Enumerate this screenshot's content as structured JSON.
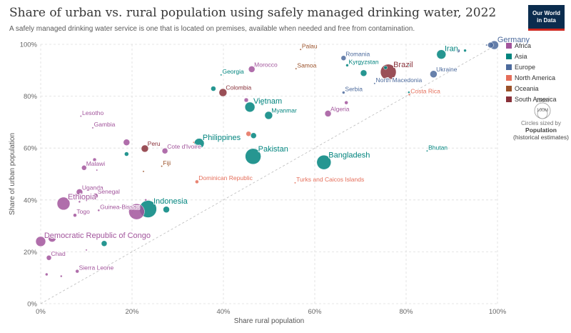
{
  "header": {
    "title": "Share of urban vs. rural population using safely managed drinking water, 2022",
    "subtitle": "A safely managed drinking water service is one that is located on premises, available when needed and free from contamination.",
    "logo_line1": "Our World",
    "logo_line2": "in Data"
  },
  "colors": {
    "Africa": "#a2559c",
    "Asia": "#00847e",
    "Europe": "#4c6a9c",
    "North America": "#e56e5a",
    "Oceania": "#9a5129",
    "South America": "#883039"
  },
  "legend": {
    "items": [
      "Africa",
      "Asia",
      "Europe",
      "North America",
      "Oceania",
      "South America"
    ],
    "size_big": "250M",
    "size_small": "100M",
    "size_note": "Circles sized by",
    "size_title": "Population",
    "size_sub": "(historical estimates)"
  },
  "chart_data": {
    "type": "scatter",
    "xlabel": "Share rural population",
    "ylabel": "Share of urban population",
    "xlim": [
      0,
      100
    ],
    "ylim": [
      0,
      100
    ],
    "x_ticks": [
      "0%",
      "20%",
      "40%",
      "60%",
      "80%",
      "100%"
    ],
    "y_ticks": [
      "0%",
      "20%",
      "40%",
      "60%",
      "80%",
      "100%"
    ],
    "points": [
      {
        "x": 0,
        "y": 24,
        "r": 7,
        "region": "Africa",
        "label": "Democratic Republic of Congo"
      },
      {
        "x": 2.5,
        "y": 25.3,
        "r": 5.5,
        "region": "Africa",
        "label": ""
      },
      {
        "x": 1.8,
        "y": 17.7,
        "r": 3.5,
        "region": "Africa",
        "label": "Chad"
      },
      {
        "x": 1.3,
        "y": 11.3,
        "r": 2,
        "region": "Africa",
        "label": ""
      },
      {
        "x": 4.5,
        "y": 10.6,
        "r": 1.5,
        "region": "Africa",
        "label": ""
      },
      {
        "x": 8,
        "y": 12.5,
        "r": 2.5,
        "region": "Africa",
        "label": "Sierra Leone"
      },
      {
        "x": 10,
        "y": 20.7,
        "r": 1.2,
        "region": "Africa",
        "label": ""
      },
      {
        "x": 5,
        "y": 38.6,
        "r": 9,
        "region": "Africa",
        "label": "Ethiopia"
      },
      {
        "x": 7.5,
        "y": 34.1,
        "r": 2.5,
        "region": "Africa",
        "label": "Togo"
      },
      {
        "x": 8.5,
        "y": 39.3,
        "r": 1.5,
        "region": "Africa",
        "label": ""
      },
      {
        "x": 8.5,
        "y": 43,
        "r": 4.5,
        "region": "Africa",
        "label": "Uganda"
      },
      {
        "x": 12,
        "y": 41.6,
        "r": 3.5,
        "region": "Africa",
        "label": "Senegal"
      },
      {
        "x": 12.7,
        "y": 36,
        "r": 1.5,
        "region": "Africa",
        "label": "Guinea-Bissau"
      },
      {
        "x": 9.5,
        "y": 52.4,
        "r": 3.5,
        "region": "Africa",
        "label": "Malawi"
      },
      {
        "x": 11.8,
        "y": 55.5,
        "r": 2.5,
        "region": "Africa",
        "label": ""
      },
      {
        "x": 12.3,
        "y": 51.5,
        "r": 1.2,
        "region": "Africa",
        "label": ""
      },
      {
        "x": 11.4,
        "y": 67.8,
        "r": 1.2,
        "region": "Africa",
        "label": "Gambia"
      },
      {
        "x": 8.8,
        "y": 72.3,
        "r": 1.2,
        "region": "Africa",
        "label": "Lesotho"
      },
      {
        "x": 21,
        "y": 35.5,
        "r": 11,
        "region": "Africa",
        "label": ""
      },
      {
        "x": 18.8,
        "y": 62.2,
        "r": 4.5,
        "region": "Africa",
        "label": ""
      },
      {
        "x": 27.2,
        "y": 58.9,
        "r": 4,
        "region": "Africa",
        "label": "Cote d'Ivoire"
      },
      {
        "x": 23,
        "y": 40,
        "r": 1.5,
        "region": "Africa",
        "label": ""
      },
      {
        "x": 45,
        "y": 78.5,
        "r": 3,
        "region": "Africa",
        "label": ""
      },
      {
        "x": 46.2,
        "y": 90.4,
        "r": 4.5,
        "region": "Africa",
        "label": "Morocco"
      },
      {
        "x": 62.9,
        "y": 73.3,
        "r": 4.5,
        "region": "Africa",
        "label": "Algeria"
      },
      {
        "x": 66.9,
        "y": 77.5,
        "r": 2.5,
        "region": "Africa",
        "label": ""
      },
      {
        "x": 23.5,
        "y": 36.5,
        "r": 12,
        "region": "Asia",
        "label": "Indonesia"
      },
      {
        "x": 27.5,
        "y": 36.3,
        "r": 4.5,
        "region": "Asia",
        "label": ""
      },
      {
        "x": 13.9,
        "y": 23.2,
        "r": 4,
        "region": "Asia",
        "label": ""
      },
      {
        "x": 18.8,
        "y": 57.7,
        "r": 3,
        "region": "Asia",
        "label": ""
      },
      {
        "x": 34.7,
        "y": 61.8,
        "r": 7,
        "region": "Asia",
        "label": "Philippines"
      },
      {
        "x": 46.5,
        "y": 56.8,
        "r": 11,
        "region": "Asia",
        "label": "Pakistan"
      },
      {
        "x": 46.6,
        "y": 64.8,
        "r": 4,
        "region": "Asia",
        "label": ""
      },
      {
        "x": 45.8,
        "y": 75.8,
        "r": 7,
        "region": "Asia",
        "label": "Vietnam"
      },
      {
        "x": 48.5,
        "y": 77.2,
        "r": 2.5,
        "region": "Asia",
        "label": ""
      },
      {
        "x": 49.9,
        "y": 72.6,
        "r": 5.5,
        "region": "Asia",
        "label": "Myanmar"
      },
      {
        "x": 37.8,
        "y": 82.9,
        "r": 3.5,
        "region": "Asia",
        "label": ""
      },
      {
        "x": 62,
        "y": 54.5,
        "r": 10,
        "region": "Asia",
        "label": "Bangladesh"
      },
      {
        "x": 67.1,
        "y": 91.9,
        "r": 2,
        "region": "Asia",
        "label": "Kyrgyzstan"
      },
      {
        "x": 70.7,
        "y": 88.9,
        "r": 4.5,
        "region": "Asia",
        "label": ""
      },
      {
        "x": 75.5,
        "y": 91,
        "r": 2.5,
        "region": "Asia",
        "label": ""
      },
      {
        "x": 80.6,
        "y": 92.3,
        "r": 2.5,
        "region": "Asia",
        "label": ""
      },
      {
        "x": 80.6,
        "y": 81.5,
        "r": 1.5,
        "region": "Asia",
        "label": ""
      },
      {
        "x": 87.7,
        "y": 96.1,
        "r": 6.5,
        "region": "Asia",
        "label": "Iran"
      },
      {
        "x": 92.9,
        "y": 97.6,
        "r": 2,
        "region": "Asia",
        "label": ""
      },
      {
        "x": 84.6,
        "y": 58.9,
        "r": 1.2,
        "region": "Asia",
        "label": "Bhutan"
      },
      {
        "x": 39.5,
        "y": 88.2,
        "r": 1.2,
        "region": "Asia",
        "label": "Georgia"
      },
      {
        "x": 98.5,
        "y": 99.7,
        "r": 4,
        "region": "Europe",
        "label": ""
      },
      {
        "x": 99.3,
        "y": 99.7,
        "r": 6,
        "region": "Europe",
        "label": "Germany"
      },
      {
        "x": 97.6,
        "y": 99.7,
        "r": 1.2,
        "region": "Europe",
        "label": ""
      },
      {
        "x": 91.4,
        "y": 97.5,
        "r": 2.5,
        "region": "Europe",
        "label": ""
      },
      {
        "x": 86,
        "y": 88.5,
        "r": 5,
        "region": "Europe",
        "label": "Ukraine"
      },
      {
        "x": 66.3,
        "y": 94.7,
        "r": 3.5,
        "region": "Europe",
        "label": "Romania"
      },
      {
        "x": 66.3,
        "y": 81.4,
        "r": 2,
        "region": "Europe",
        "label": "Serbia"
      },
      {
        "x": 73.1,
        "y": 84.9,
        "r": 1.2,
        "region": "Europe",
        "label": "North Macedonia"
      },
      {
        "x": 45.5,
        "y": 65.5,
        "r": 3.5,
        "region": "North America",
        "label": ""
      },
      {
        "x": 33.5,
        "y": 62.2,
        "r": 1.2,
        "region": "North America",
        "label": ""
      },
      {
        "x": 34.2,
        "y": 47,
        "r": 2.5,
        "region": "North America",
        "label": "Dominican Republic"
      },
      {
        "x": 55.7,
        "y": 46.6,
        "r": 1.2,
        "region": "North America",
        "label": "Turks and Caicos Islands"
      },
      {
        "x": 80.7,
        "y": 80.6,
        "r": 1.5,
        "region": "North America",
        "label": "Costa Rica"
      },
      {
        "x": 56.9,
        "y": 98,
        "r": 1.2,
        "region": "Oceania",
        "label": "Palau"
      },
      {
        "x": 55.9,
        "y": 90.6,
        "r": 1.2,
        "region": "Oceania",
        "label": "Samoa"
      },
      {
        "x": 26.5,
        "y": 53,
        "r": 1.2,
        "region": "Oceania",
        "label": "Fiji"
      },
      {
        "x": 22.5,
        "y": 51,
        "r": 1.2,
        "region": "Oceania",
        "label": ""
      },
      {
        "x": 76.1,
        "y": 89.3,
        "r": 11,
        "region": "South America",
        "label": "Brazil"
      },
      {
        "x": 39.9,
        "y": 81.4,
        "r": 5.5,
        "region": "South America",
        "label": "Colombia"
      },
      {
        "x": 22.8,
        "y": 59.8,
        "r": 5,
        "region": "South America",
        "label": "Peru"
      }
    ]
  }
}
